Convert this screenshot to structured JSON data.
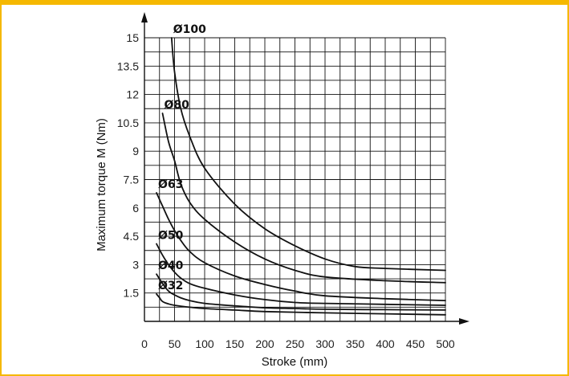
{
  "chart_data": {
    "type": "line",
    "title": "",
    "xlabel": "Stroke (mm)",
    "ylabel": "Maximum torque M (Nm)",
    "xlim": [
      0,
      500
    ],
    "ylim": [
      0,
      15
    ],
    "x_ticks": [
      "0",
      "50",
      "100",
      "150",
      "200",
      "250",
      "300",
      "350",
      "400",
      "450",
      "500"
    ],
    "y_ticks": [
      "1.5",
      "3",
      "4.5",
      "6",
      "7.5",
      "9",
      "10.5",
      "12",
      "13.5",
      "15"
    ],
    "grid": true,
    "border_color": "#f5b800",
    "series": [
      {
        "name": "Ø100",
        "x": [
          45,
          50,
          60,
          75,
          100,
          150,
          200,
          250,
          300,
          350,
          400,
          500
        ],
        "y": [
          15,
          13.2,
          11.3,
          9.8,
          8.1,
          6.2,
          4.9,
          4.0,
          3.3,
          2.9,
          2.8,
          2.7
        ]
      },
      {
        "name": "Ø80",
        "x": [
          30,
          40,
          50,
          60,
          75,
          100,
          150,
          200,
          250,
          300,
          400,
          500
        ],
        "y": [
          11,
          9.5,
          8.5,
          7.3,
          6.3,
          5.4,
          4.2,
          3.3,
          2.7,
          2.35,
          2.15,
          2.05
        ]
      },
      {
        "name": "Ø63",
        "x": [
          20,
          30,
          40,
          50,
          60,
          75,
          100,
          150,
          200,
          250,
          300,
          400,
          500
        ],
        "y": [
          6.8,
          6.1,
          5.4,
          4.8,
          4.3,
          3.7,
          3.1,
          2.4,
          1.95,
          1.6,
          1.35,
          1.2,
          1.1
        ]
      },
      {
        "name": "Ø50",
        "x": [
          20,
          30,
          40,
          50,
          60,
          75,
          100,
          150,
          200,
          250,
          300,
          400,
          500
        ],
        "y": [
          4.1,
          3.5,
          3.0,
          2.6,
          2.3,
          2.0,
          1.75,
          1.4,
          1.15,
          1.0,
          0.95,
          0.9,
          0.85
        ]
      },
      {
        "name": "Ø40",
        "x": [
          20,
          30,
          40,
          50,
          60,
          75,
          100,
          150,
          200,
          250,
          300,
          400,
          500
        ],
        "y": [
          2.5,
          2.0,
          1.6,
          1.4,
          1.25,
          1.1,
          0.95,
          0.82,
          0.72,
          0.68,
          0.64,
          0.62,
          0.6
        ]
      },
      {
        "name": "Ø32",
        "x": [
          20,
          25,
          30,
          40,
          50,
          75,
          100,
          150,
          200,
          300,
          400,
          500
        ],
        "y": [
          1.45,
          1.25,
          1.05,
          0.92,
          0.85,
          0.75,
          0.68,
          0.6,
          0.52,
          0.45,
          0.4,
          0.35
        ]
      }
    ]
  }
}
